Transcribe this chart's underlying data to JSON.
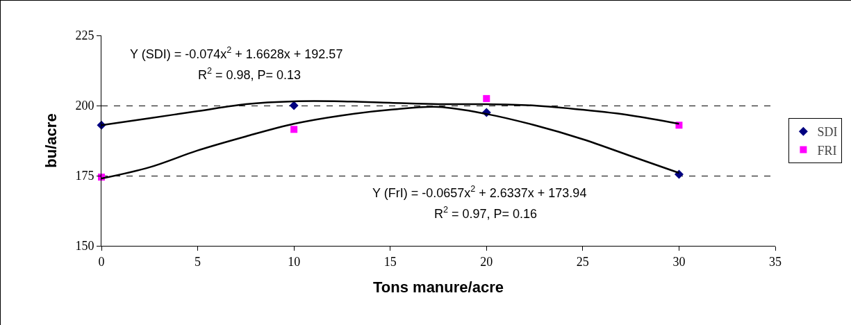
{
  "chart_data": {
    "type": "scatter",
    "xlabel": "Tons manure/acre",
    "ylabel": "bu/acre",
    "xlim": [
      0,
      35
    ],
    "xticks": [
      0,
      5,
      10,
      15,
      20,
      25,
      30,
      35
    ],
    "ylim": [
      150,
      225
    ],
    "yticks": [
      150,
      175,
      200,
      225
    ],
    "grid": "y",
    "legend": "right",
    "annotations": [
      "Y (SDI) = -0.074x$^{2}$ + 1.6628x + 192.57",
      "R$^{2}$ = 0.98, P= 0.13",
      "Y (FrI) = -0.0657x$^{2}$ + 2.6337x + 173.94",
      "R$^{2}$ = 0.97, P= 0.16"
    ],
    "series": [
      {
        "name": "SDI",
        "type": "scatter",
        "marker": "diamond",
        "color": "#000080",
        "x": [
          0,
          10,
          20,
          30
        ],
        "values": [
          193,
          200,
          197.5,
          175.5
        ]
      },
      {
        "name": "FRI",
        "type": "scatter",
        "marker": "square",
        "color": "#ff00ff",
        "x": [
          0,
          10,
          20,
          30
        ],
        "values": [
          174.5,
          191.5,
          202.5,
          193
        ]
      },
      {
        "type": "line",
        "color": "#000000",
        "x": [
          0,
          2.5,
          5,
          7.5,
          10,
          12.5,
          15,
          17.5,
          20,
          22.5,
          25,
          27.5,
          30
        ],
        "values": [
          193,
          195.5,
          198,
          200.5,
          201.5,
          201.5,
          201,
          200.5,
          200.5,
          200,
          198.5,
          196.5,
          193.5
        ]
      },
      {
        "type": "line",
        "color": "#000000",
        "x": [
          0,
          2.5,
          5,
          7.5,
          10,
          12.5,
          15,
          17.5,
          20,
          22.5,
          25,
          27.5,
          30
        ],
        "values": [
          174,
          178,
          184,
          189,
          193.5,
          196.5,
          198.5,
          199.5,
          197,
          193,
          188,
          182,
          176
        ]
      }
    ]
  }
}
